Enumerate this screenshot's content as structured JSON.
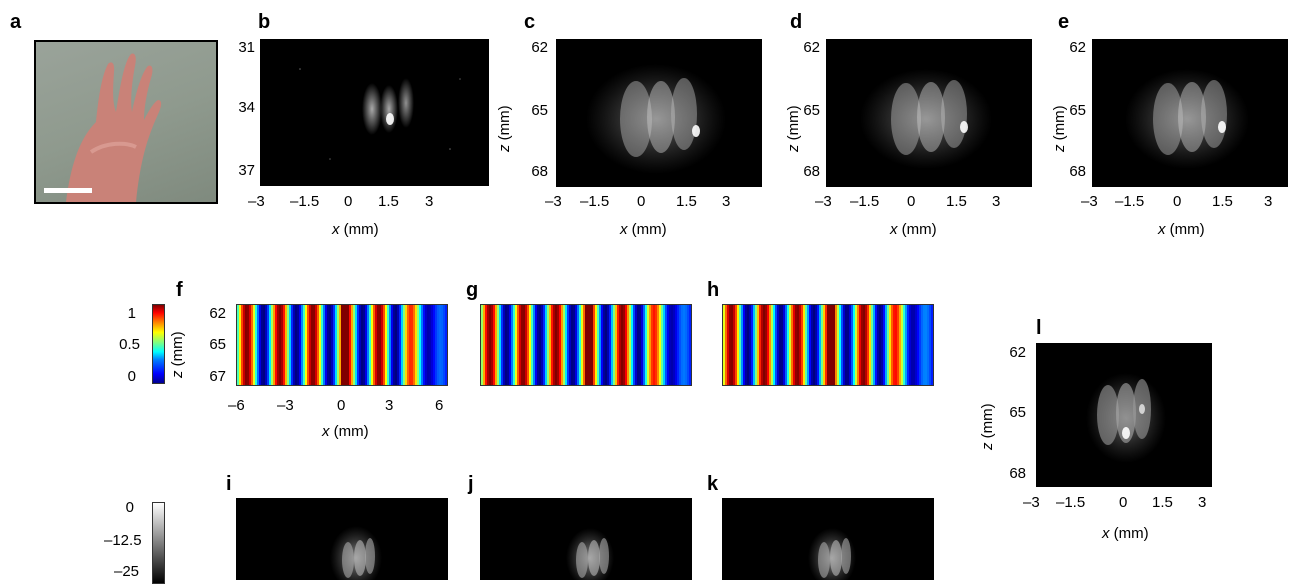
{
  "panels": {
    "a": "a",
    "b": "b",
    "c": "c",
    "d": "d",
    "e": "e",
    "f": "f",
    "g": "g",
    "h": "h",
    "i": "i",
    "j": "j",
    "k": "k",
    "l": "l"
  },
  "axis_labels": {
    "x_var": "x",
    "x_unit": " (mm)",
    "z_var": "z",
    "z_unit": " (mm)"
  },
  "chart_data": [
    {
      "panel": "b",
      "type": "heatmap",
      "xlabel": "x (mm)",
      "ylabel": "z (mm)",
      "x_ticks": [
        "–3",
        "–1.5",
        "0",
        "1.5",
        "3"
      ],
      "y_ticks": [
        "31",
        "34",
        "37"
      ],
      "colormap": "gray"
    },
    {
      "panel": "c",
      "type": "heatmap",
      "xlabel": "x (mm)",
      "ylabel": "z (mm)",
      "x_ticks": [
        "–3",
        "–1.5",
        "0",
        "1.5",
        "3"
      ],
      "y_ticks": [
        "62",
        "65",
        "68"
      ],
      "colormap": "gray"
    },
    {
      "panel": "d",
      "type": "heatmap",
      "xlabel": "x (mm)",
      "ylabel": "z (mm)",
      "x_ticks": [
        "–3",
        "–1.5",
        "0",
        "1.5",
        "3"
      ],
      "y_ticks": [
        "62",
        "65",
        "68"
      ],
      "colormap": "gray"
    },
    {
      "panel": "e",
      "type": "heatmap",
      "xlabel": "x (mm)",
      "ylabel": "z (mm)",
      "x_ticks": [
        "–3",
        "–1.5",
        "0",
        "1.5",
        "3"
      ],
      "y_ticks": [
        "62",
        "65",
        "68"
      ],
      "colormap": "gray"
    },
    {
      "panel": "f",
      "type": "heatmap",
      "xlabel": "x (mm)",
      "ylabel": "z (mm)",
      "x_ticks": [
        "–6",
        "–3",
        "0",
        "3",
        "6"
      ],
      "y_ticks": [
        "62",
        "65",
        "67"
      ],
      "colormap": "jet",
      "colorbar_ticks": [
        "1",
        "0.5",
        "0"
      ],
      "colorbar_range": [
        0,
        1
      ]
    },
    {
      "panel": "g",
      "type": "heatmap",
      "colormap": "jet"
    },
    {
      "panel": "h",
      "type": "heatmap",
      "colormap": "jet"
    },
    {
      "panel": "i",
      "type": "heatmap",
      "colormap": "gray",
      "colorbar_ticks": [
        "0",
        "–12.5",
        "–25"
      ],
      "colorbar_range": [
        -25,
        0
      ]
    },
    {
      "panel": "j",
      "type": "heatmap",
      "colormap": "gray"
    },
    {
      "panel": "k",
      "type": "heatmap",
      "colormap": "gray"
    },
    {
      "panel": "l",
      "type": "heatmap",
      "xlabel": "x (mm)",
      "ylabel": "z (mm)",
      "x_ticks": [
        "–3",
        "–1.5",
        "0",
        "1.5",
        "3"
      ],
      "y_ticks": [
        "62",
        "65",
        "68"
      ],
      "colormap": "gray"
    }
  ]
}
